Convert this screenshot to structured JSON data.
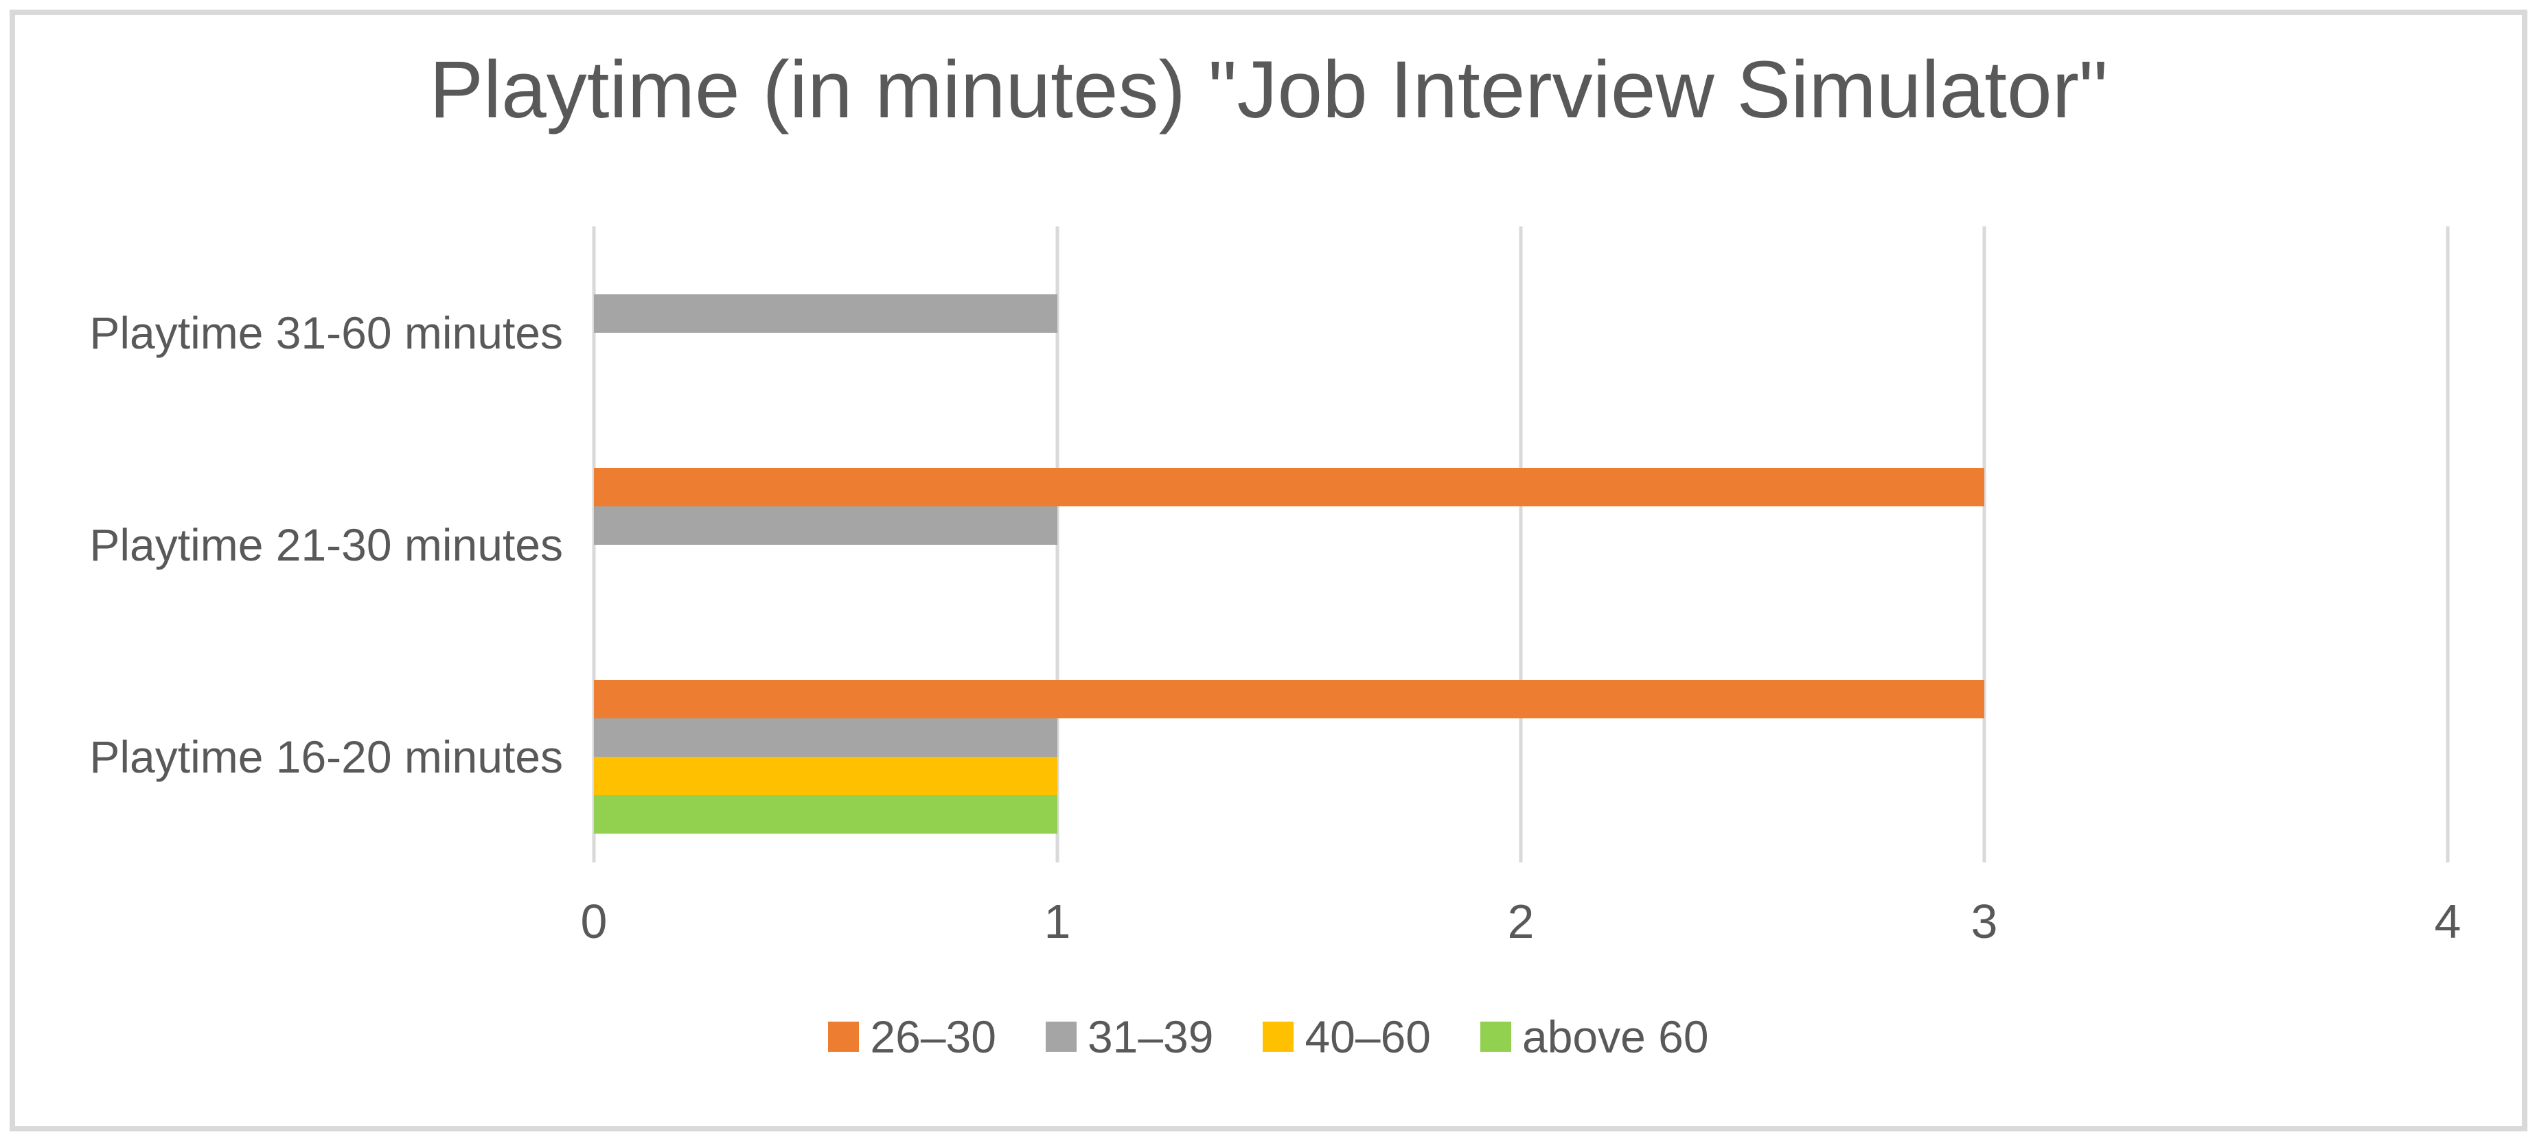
{
  "title": "Playtime (in minutes) \"Job Interview Simulator\"",
  "colors": {
    "text": "#595959",
    "gridline": "#D9D9D9",
    "frame_border": "#D9D9D9",
    "background": "#FFFFFF"
  },
  "chart_data": {
    "type": "bar",
    "orientation": "horizontal",
    "title": "Playtime (in minutes) \"Job Interview Simulator\"",
    "categories": [
      "Playtime 31-60 minutes",
      "Playtime 21-30 minutes",
      "Playtime 16-20 minutes"
    ],
    "series": [
      {
        "name": "26–30",
        "color": "#ED7D31",
        "values": [
          0,
          3,
          3
        ]
      },
      {
        "name": "31–39",
        "color": "#A5A5A5",
        "values": [
          1,
          1,
          1
        ]
      },
      {
        "name": "40–60",
        "color": "#FFC000",
        "values": [
          0,
          0,
          1
        ]
      },
      {
        "name": "above 60",
        "color": "#92D050",
        "values": [
          0,
          0,
          1
        ]
      }
    ],
    "x_axis": {
      "min": 0,
      "max": 4,
      "tick_labels": [
        "0",
        "1",
        "2",
        "3",
        "4"
      ]
    },
    "grid": true,
    "legend_position": "bottom-center"
  }
}
